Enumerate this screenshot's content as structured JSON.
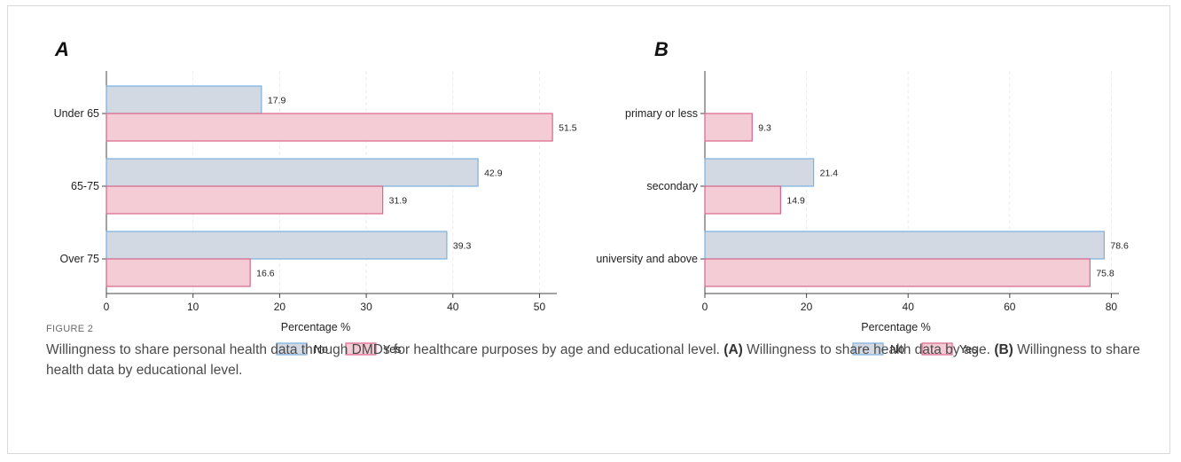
{
  "figure": {
    "label": "FIGURE 2",
    "caption": {
      "main": "Willingness to share personal health data through DMDs for healthcare purposes by age and educational level.",
      "a_tag": "(A)",
      "a_text": "Willingness to share health data by age.",
      "b_tag": "(B)",
      "b_text": "Willingness to share health data by educational level."
    }
  },
  "colors": {
    "no": "#d2d9e3",
    "no_border": "#7ab0e0",
    "yes": "#f3ccd5",
    "yes_border": "#d9668a"
  },
  "chart_data": [
    {
      "type": "bar",
      "orientation": "horizontal",
      "panel": "A",
      "categories": [
        "Under 65",
        "65-75",
        "Over 75"
      ],
      "series": [
        {
          "name": "No",
          "values": [
            17.9,
            42.9,
            39.3
          ]
        },
        {
          "name": "Yes",
          "values": [
            51.5,
            31.9,
            16.6
          ]
        }
      ],
      "xlabel": "Percentage %",
      "xlim": [
        0,
        52
      ],
      "xticks": [
        0,
        10,
        20,
        30,
        40,
        50
      ],
      "legend": "bottom",
      "grid": true
    },
    {
      "type": "bar",
      "orientation": "horizontal",
      "panel": "B",
      "categories": [
        "primary or less",
        "secondary",
        "university and above"
      ],
      "series": [
        {
          "name": "No",
          "values": [
            null,
            21.4,
            78.6
          ]
        },
        {
          "name": "Yes",
          "values": [
            9.3,
            14.9,
            75.8
          ]
        }
      ],
      "xlabel": "Percentage %",
      "xlim": [
        0,
        81.5
      ],
      "xticks": [
        0,
        20,
        40,
        60,
        80
      ],
      "legend": "bottom",
      "grid": true
    }
  ]
}
